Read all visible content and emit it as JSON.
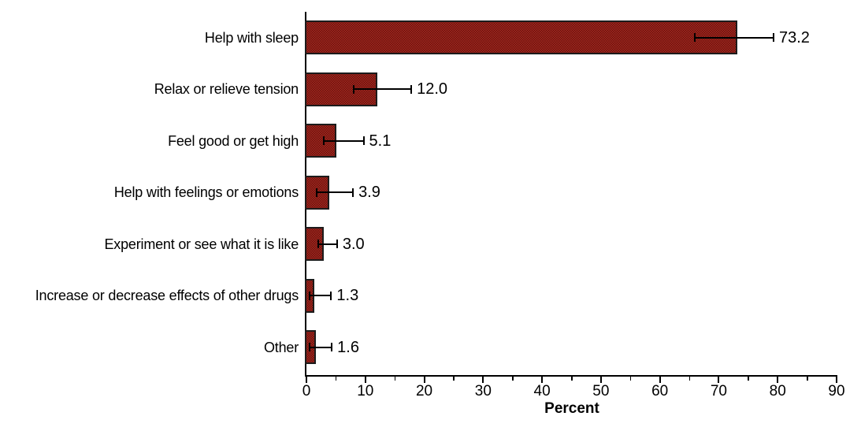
{
  "chart_data": {
    "type": "bar",
    "orientation": "horizontal",
    "title": "",
    "xlabel": "Percent",
    "xlim": [
      0,
      90
    ],
    "grid": false,
    "legend": null,
    "categories": [
      "Help with sleep",
      "Relax or relieve tension",
      "Feel good or get high",
      "Help with feelings or emotions",
      "Experiment or see what it is like",
      "Increase or decrease effects of other drugs",
      "Other"
    ],
    "values": [
      73.2,
      12.0,
      5.1,
      3.9,
      3.0,
      1.3,
      1.6
    ],
    "value_labels": [
      "73.2",
      "12.0",
      "5.1",
      "3.9",
      "3.0",
      "1.3",
      "1.6"
    ],
    "error_low": [
      65.9,
      8.0,
      2.9,
      1.7,
      2.0,
      0.5,
      0.5
    ],
    "error_high": [
      79.3,
      17.8,
      9.7,
      7.9,
      5.2,
      4.2,
      4.3
    ],
    "xticks_major": [
      0,
      10,
      20,
      30,
      40,
      50,
      60,
      70,
      80,
      90
    ],
    "xtick_labels": [
      "0",
      "10",
      "20",
      "30",
      "40",
      "50",
      "60",
      "70",
      "80",
      "90"
    ],
    "xticks_minor": [
      5,
      15,
      25,
      35,
      45,
      55,
      65,
      75,
      85
    ],
    "colors": {
      "bar_fill": "#dd3a2d",
      "bar_pattern_dot": "#5c0f0b",
      "bar_border": "#1c1c1c",
      "axis": "#000000",
      "text": "#000000"
    }
  }
}
